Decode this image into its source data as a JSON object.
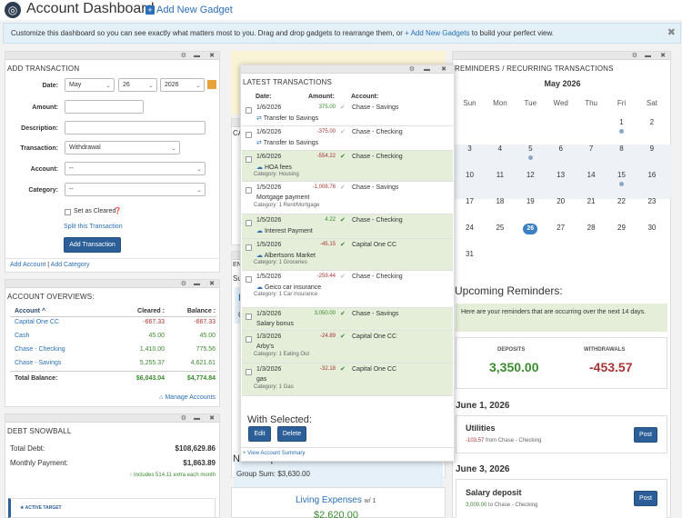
{
  "header": {
    "title": "Account Dashboard",
    "add_gadget": "Add New Gadget"
  },
  "info": {
    "text": "Customize this dashboard so you can see exactly what matters most to you. Drag and drop gadgets to rearrange them, or ",
    "link": "+ Add New Gadgets",
    "tail": " to build your perfect view."
  },
  "add_tx": {
    "title": "ADD TRANSACTION",
    "date_label": "Date:",
    "month": "May",
    "day": "26",
    "year": "2026",
    "amount_label": "Amount:",
    "desc_label": "Description:",
    "tx_label": "Transaction:",
    "tx_value": "Withdrawal",
    "account_label": "Account:",
    "account_value": "--",
    "category_label": "Category:",
    "category_value": "--",
    "cleared_label": "Set as Cleared",
    "split_link": "Split this Transaction",
    "add_button": "Add Transaction",
    "footer_add_account": "Add Account",
    "footer_sep": "|",
    "footer_add_category": "Add Category"
  },
  "overviews": {
    "title": "ACCOUNT OVERVIEWS:",
    "col_account": "Account",
    "col_cleared": "Cleared :",
    "col_balance": "Balance :",
    "rows": [
      {
        "name": "Capital One CC",
        "cleared": "-667.33",
        "balance": "-667.33"
      },
      {
        "name": "Cash",
        "cleared": "45.00",
        "balance": "45.00"
      },
      {
        "name": "Chase - Checking",
        "cleared": "1,410.00",
        "balance": "775.56"
      },
      {
        "name": "Chase - Savings",
        "cleared": "5,255.37",
        "balance": "4,621.61"
      }
    ],
    "total_label": "Total Balance:",
    "total_cleared": "$6,043.04",
    "total_balance": "$4,774.84",
    "manage": "Manage Accounts"
  },
  "snowball": {
    "title": "DEBT SNOWBALL",
    "debt_label": "Total Debt:",
    "debt": "$108,629.86",
    "payment_label": "Monthly Payment:",
    "payment": "$1,863.89",
    "extra": "Includes 514.11 extra each month",
    "active": "★ ACTIVE TARGET"
  },
  "latest": {
    "title": "LATEST TRANSACTIONS",
    "col_date": "Date:",
    "col_amount": "Amount:",
    "col_account": "Account:",
    "rows": [
      {
        "date": "1/6/2026",
        "amount": "375.00",
        "account": "Chase - Savings",
        "desc": "Transfer to Savings",
        "cat": ""
      },
      {
        "date": "1/6/2026",
        "amount": "-375.00",
        "account": "Chase - Checking",
        "desc": "Transfer to Savings",
        "cat": ""
      },
      {
        "date": "1/6/2026",
        "amount": "-554.22",
        "account": "Chase - Checking",
        "desc": "HOA fees",
        "cat": "Category: Housing"
      },
      {
        "date": "1/5/2026",
        "amount": "-1,008.76",
        "account": "Chase - Savings",
        "desc": "Mortgage payment",
        "cat": "Category: 1 Rent/Mortgage"
      },
      {
        "date": "1/5/2026",
        "amount": "4.22",
        "account": "Chase - Checking",
        "desc": "Interest Payment",
        "cat": ""
      },
      {
        "date": "1/5/2026",
        "amount": "-45.15",
        "account": "Capital One CC",
        "desc": "Albertsons Market",
        "cat": "Category: 1 Groceries"
      },
      {
        "date": "1/5/2026",
        "amount": "-259.44",
        "account": "Chase - Checking",
        "desc": "Geico car insurance",
        "cat": "Category: 1 Car Insurance"
      },
      {
        "date": "1/3/2026",
        "amount": "3,050.00",
        "account": "Chase - Savings",
        "desc": "Salary bonus",
        "cat": ""
      },
      {
        "date": "1/3/2026",
        "amount": "-24.89",
        "account": "Capital One CC",
        "desc": "Arby's",
        "cat": "Category: 1 Eating Out"
      },
      {
        "date": "1/3/2026",
        "amount": "-32.18",
        "account": "Capital One CC",
        "desc": "gas",
        "cat": "Category: 1 Gas"
      }
    ],
    "with_selected": "With Selected:",
    "edit": "Edit",
    "delete": "Delete",
    "view_summary": "+ View Account Summary"
  },
  "mid": {
    "ca": "CA",
    "en": "EN",
    "su": "Su",
    "f": "F",
    "g": "G",
    "no_group": "No Group",
    "group_sum": "Group Sum: $3,630.00",
    "living": "Living Expenses",
    "living_count": "w/ 1",
    "living_amount": "$2,620.00"
  },
  "reminders": {
    "title": "REMINDERS / RECURRING TRANSACTIONS",
    "month": "May 2026",
    "weekdays": [
      "Sun",
      "Mon",
      "Tue",
      "Wed",
      "Thu",
      "Fri",
      "Sat"
    ],
    "weeks": [
      [
        "",
        "",
        "",
        "",
        "",
        "1",
        "2"
      ],
      [
        "3",
        "4",
        "5",
        "6",
        "7",
        "8",
        "9"
      ],
      [
        "10",
        "11",
        "12",
        "13",
        "14",
        "15",
        "16"
      ],
      [
        "17",
        "18",
        "19",
        "20",
        "21",
        "22",
        "23"
      ],
      [
        "24",
        "25",
        "26",
        "27",
        "28",
        "29",
        "30"
      ],
      [
        "31",
        "",
        "",
        "",
        "",
        "",
        ""
      ]
    ],
    "upcoming_title": "Upcoming Reminders:",
    "upcoming_note": "Here are your reminders that are occurring over the next 14 days.",
    "deposits_label": "DEPOSITS",
    "deposits": "3,350.00",
    "withdrawals_label": "WITHDRAWALS",
    "withdrawals": "-453.57",
    "date1": "June 1, 2026",
    "item1_name": "Utilities",
    "item1_amount": "-103.57",
    "item1_from": "from Chase - Checking",
    "date2": "June 3, 2026",
    "item2_name": "Salary deposit",
    "item2_amount": "3,000.00",
    "item2_to": "to Chase - Checking",
    "post": "Post"
  }
}
